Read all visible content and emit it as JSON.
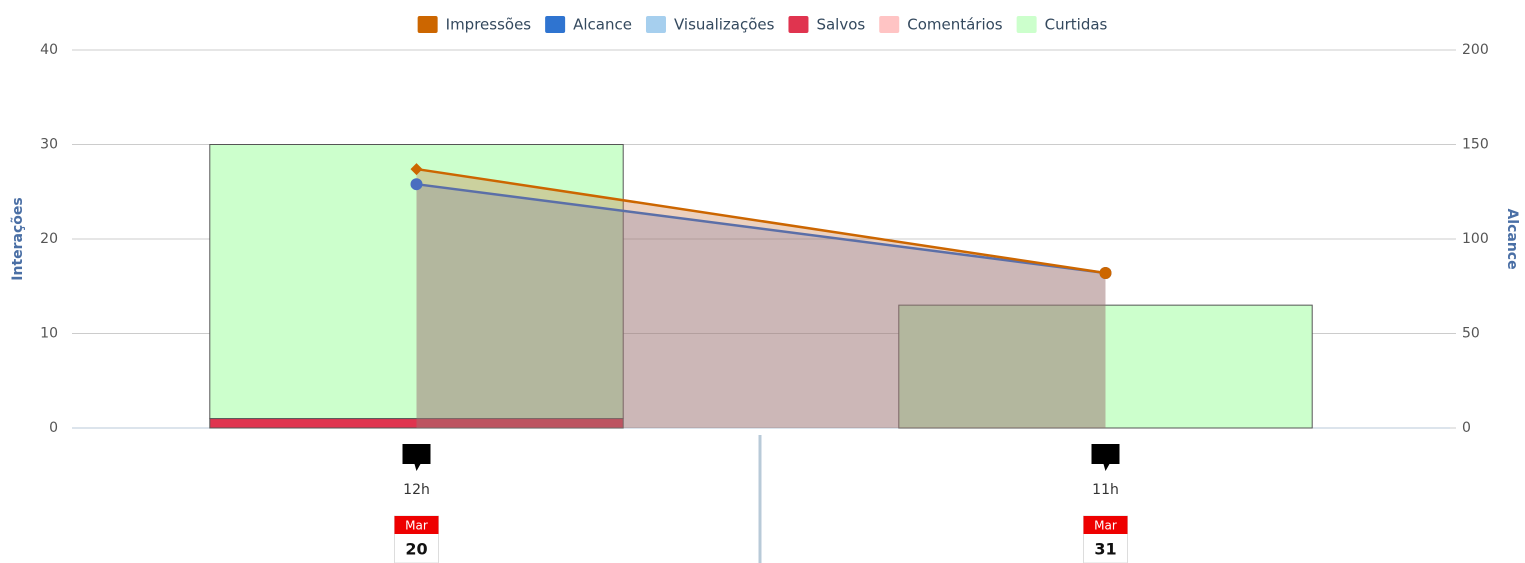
{
  "chart_data": {
    "type": "combo",
    "categories": [
      "20",
      "31"
    ],
    "months": [
      "Mar",
      "Mar"
    ],
    "times": [
      "12h",
      "11h"
    ],
    "y_label": "Interações",
    "y2_label": "Alcance",
    "ylim": [
      0,
      40
    ],
    "yticks": [
      0,
      10,
      20,
      30,
      40
    ],
    "y2lim": [
      0,
      200
    ],
    "y2ticks": [
      0,
      50,
      100,
      150,
      200
    ],
    "grid": true,
    "legend": "top",
    "series": [
      {
        "name": "Impressões",
        "type": "area",
        "axis": "y2",
        "color": "#cc6600",
        "values": [
          137,
          82
        ]
      },
      {
        "name": "Alcance",
        "type": "area",
        "axis": "y2",
        "color": "#2f74d0",
        "values": [
          129,
          82
        ]
      },
      {
        "name": "Visualizações",
        "type": "column",
        "color": "#a6cfee",
        "values": [
          0,
          0
        ]
      },
      {
        "name": "Salvos",
        "type": "column",
        "color": "#e0344f",
        "values": [
          1,
          0
        ]
      },
      {
        "name": "Comentários",
        "type": "column",
        "color": "#ffc4c4",
        "values": [
          0,
          0
        ]
      },
      {
        "name": "Curtidas",
        "type": "column",
        "color": "#ccffcc",
        "values": [
          29,
          13
        ]
      }
    ]
  }
}
